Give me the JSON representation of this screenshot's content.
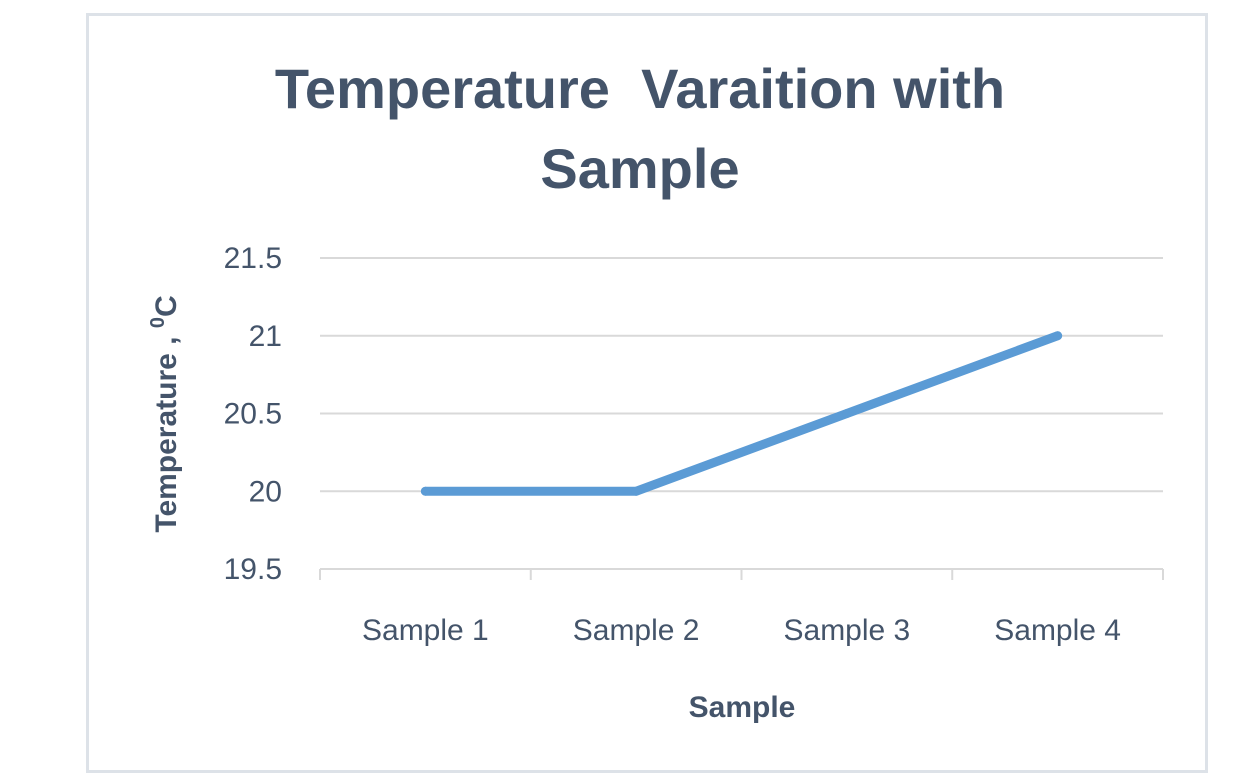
{
  "chart_data": {
    "type": "line",
    "title_line1": "Temperature  Varaition with",
    "title_line2": "Sample",
    "xlabel": "Sample",
    "ylabel_main": "Temperature , ",
    "ylabel_sup": "0",
    "ylabel_unit": "C",
    "categories": [
      "Sample 1",
      "Sample 2",
      "Sample 3",
      "Sample 4"
    ],
    "series": [
      {
        "values": [
          20,
          20,
          20.5,
          21
        ]
      }
    ],
    "ylim": [
      19.5,
      21.5
    ],
    "yticks": [
      "19.5",
      "20",
      "20.5",
      "21",
      "21.5"
    ],
    "grid": true,
    "line_color": "#5b9bd5",
    "text_color": "#44546a",
    "grid_color": "#d9d9d9"
  }
}
